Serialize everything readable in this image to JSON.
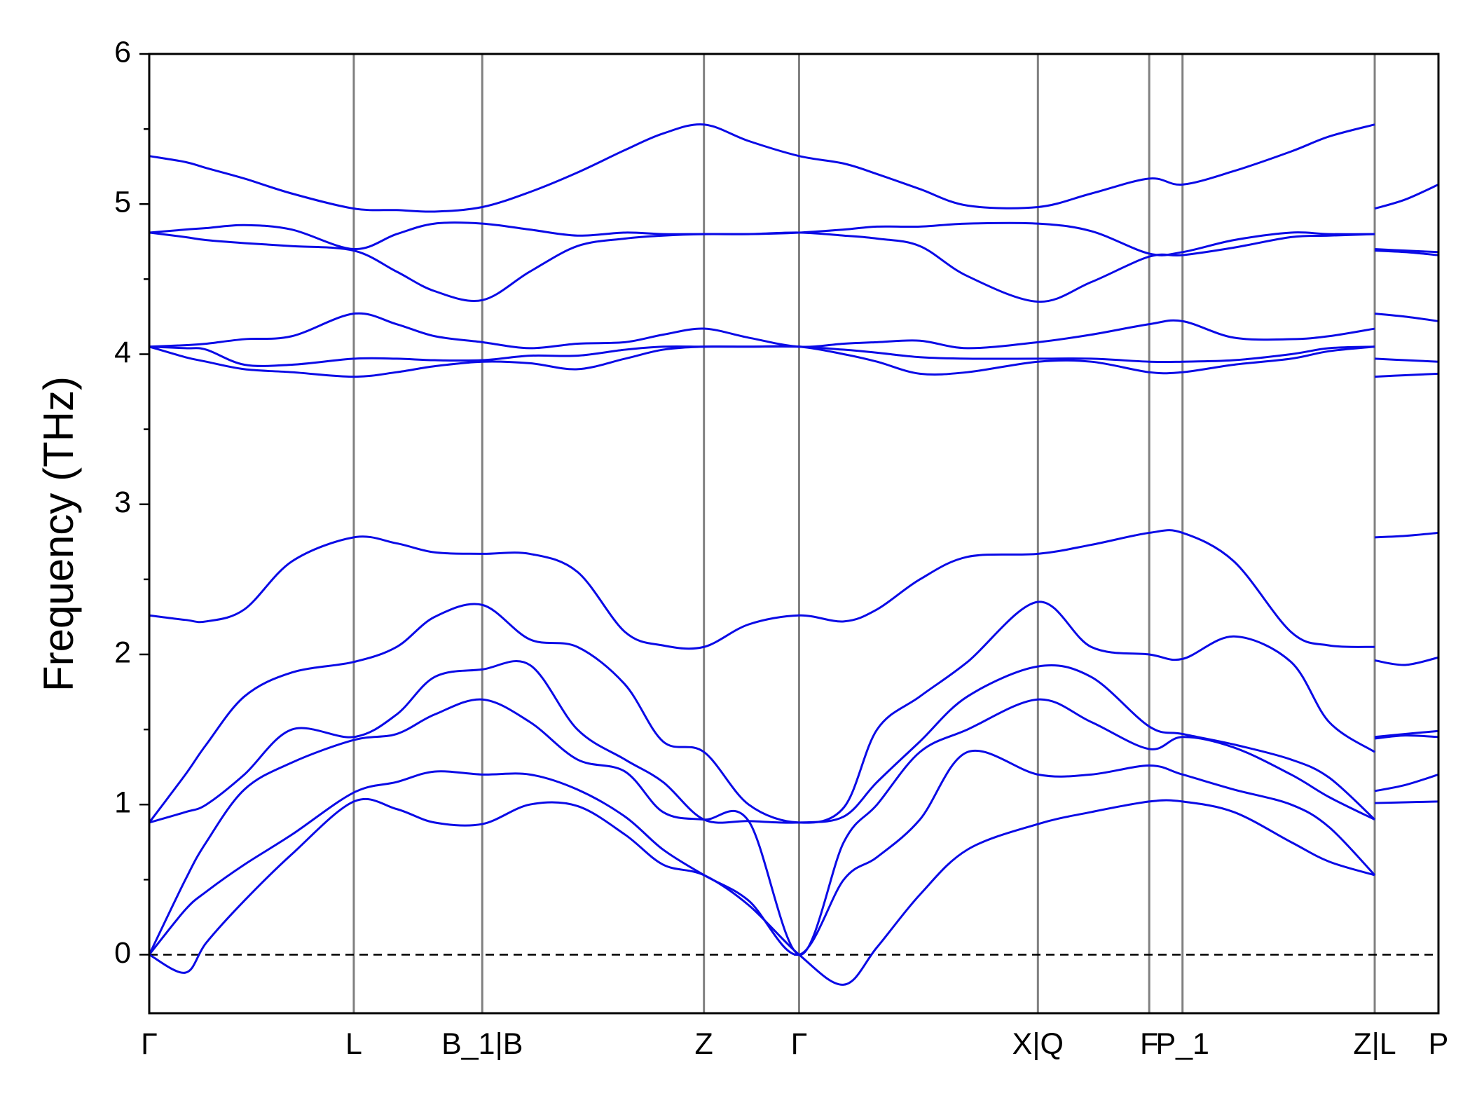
{
  "chart_data": {
    "type": "line",
    "ylabel": "Frequency (THz)",
    "x": [
      0,
      0.38,
      0.6,
      1.0,
      1.5,
      2.15,
      2.6,
      3.0,
      3.5,
      4.0,
      4.5,
      5.0,
      5.4,
      5.83,
      6.3,
      6.83,
      7.3,
      7.65,
      8.1,
      8.6,
      9.34,
      9.9,
      10.51,
      10.86,
      11.4,
      12.0,
      12.4,
      12.88,
      12.88,
      12.88,
      13.2,
      13.55
    ],
    "xlim": [
      0,
      13.55
    ],
    "xticks": [
      {
        "value": 0,
        "label": "Γ"
      },
      {
        "value": 2.15,
        "label": "L"
      },
      {
        "value": 3.5,
        "label": "B_1|B"
      },
      {
        "value": 5.83,
        "label": "Z"
      },
      {
        "value": 6.83,
        "label": "Γ"
      },
      {
        "value": 9.34,
        "label": "X|Q"
      },
      {
        "value": 10.51,
        "label": "F"
      },
      {
        "value": 10.86,
        "label": "P_1"
      },
      {
        "value": 12.88,
        "label": "Z|L"
      },
      {
        "value": 13.55,
        "label": "P"
      }
    ],
    "ylim": [
      -0.39,
      6
    ],
    "yticks": [
      0,
      1,
      2,
      3,
      4,
      5,
      6
    ],
    "yminorticks": [
      0.5,
      1.5,
      2.5,
      3.5,
      4.5,
      5.5
    ],
    "hline": 0,
    "color": "#0a0ae6",
    "vline_color": "#808080",
    "series": [
      {
        "values": [
          0,
          -0.12,
          0.08,
          0.36,
          0.67,
          1.02,
          0.97,
          0.88,
          0.87,
          1.0,
          0.99,
          0.8,
          0.6,
          0.53,
          0.33,
          0,
          -0.2,
          0.05,
          0.4,
          0.7,
          0.87,
          0.95,
          1.02,
          1.02,
          0.95,
          0.75,
          0.62,
          0.53,
          null,
          1.01,
          1.015,
          1.02
        ]
      },
      {
        "values": [
          0,
          0.3,
          0.42,
          0.6,
          0.8,
          1.08,
          1.15,
          1.22,
          1.2,
          1.2,
          1.1,
          0.92,
          0.7,
          0.53,
          0.36,
          0,
          0.5,
          0.65,
          0.9,
          1.35,
          1.2,
          1.2,
          1.26,
          1.2,
          1.1,
          1.0,
          0.85,
          0.53,
          null,
          1.09,
          1.13,
          1.2
        ]
      },
      {
        "values": [
          0,
          0.5,
          0.75,
          1.1,
          1.28,
          1.43,
          1.47,
          1.6,
          1.7,
          1.55,
          1.3,
          1.22,
          0.95,
          0.9,
          0.89,
          0,
          0.75,
          1.0,
          1.35,
          1.5,
          1.7,
          1.55,
          1.37,
          1.45,
          1.38,
          1.2,
          1.05,
          0.9,
          null,
          1.44,
          1.46,
          1.45
        ]
      },
      {
        "values": [
          0.88,
          0.95,
          1.0,
          1.2,
          1.5,
          1.45,
          1.6,
          1.85,
          1.9,
          1.93,
          1.5,
          1.3,
          1.15,
          0.9,
          0.89,
          0.88,
          0.92,
          1.15,
          1.42,
          1.72,
          1.92,
          1.85,
          1.52,
          1.47,
          1.4,
          1.3,
          1.18,
          0.9,
          null,
          1.45,
          1.47,
          1.49
        ]
      },
      {
        "values": [
          0.88,
          1.2,
          1.4,
          1.72,
          1.88,
          1.95,
          2.05,
          2.25,
          2.33,
          2.1,
          2.05,
          1.8,
          1.42,
          1.35,
          1.0,
          0.88,
          0.98,
          1.5,
          1.72,
          1.95,
          2.35,
          2.05,
          2.0,
          1.97,
          2.12,
          1.95,
          1.55,
          1.35,
          null,
          1.96,
          1.93,
          1.98
        ]
      },
      {
        "values": [
          2.26,
          2.23,
          2.22,
          2.3,
          2.62,
          2.78,
          2.74,
          2.68,
          2.67,
          2.67,
          2.55,
          2.15,
          2.06,
          2.05,
          2.2,
          2.26,
          2.22,
          2.3,
          2.5,
          2.65,
          2.67,
          2.73,
          2.81,
          2.81,
          2.62,
          2.15,
          2.06,
          2.05,
          null,
          2.78,
          2.79,
          2.81
        ]
      },
      {
        "values": [
          4.05,
          3.98,
          3.95,
          3.9,
          3.88,
          3.85,
          3.88,
          3.92,
          3.95,
          3.94,
          3.9,
          3.97,
          4.03,
          4.05,
          4.05,
          4.05,
          4.0,
          3.95,
          3.87,
          3.88,
          3.95,
          3.95,
          3.88,
          3.88,
          3.93,
          3.97,
          4.02,
          4.05,
          null,
          3.85,
          3.86,
          3.87
        ]
      },
      {
        "values": [
          4.05,
          4.04,
          4.03,
          3.93,
          3.93,
          3.97,
          3.97,
          3.96,
          3.96,
          3.99,
          3.99,
          4.03,
          4.05,
          4.05,
          4.05,
          4.05,
          4.03,
          4.01,
          3.98,
          3.97,
          3.97,
          3.97,
          3.95,
          3.95,
          3.96,
          4.0,
          4.04,
          4.05,
          null,
          3.97,
          3.96,
          3.95
        ]
      },
      {
        "values": [
          4.05,
          4.06,
          4.07,
          4.1,
          4.12,
          4.27,
          4.2,
          4.12,
          4.08,
          4.04,
          4.07,
          4.08,
          4.13,
          4.17,
          4.11,
          4.05,
          4.07,
          4.08,
          4.09,
          4.04,
          4.08,
          4.13,
          4.2,
          4.22,
          4.11,
          4.1,
          4.12,
          4.17,
          null,
          4.27,
          4.25,
          4.22
        ]
      },
      {
        "values": [
          4.81,
          4.78,
          4.76,
          4.74,
          4.72,
          4.69,
          4.55,
          4.42,
          4.36,
          4.55,
          4.72,
          4.77,
          4.79,
          4.8,
          4.8,
          4.81,
          4.79,
          4.77,
          4.72,
          4.52,
          4.35,
          4.48,
          4.65,
          4.66,
          4.71,
          4.78,
          4.79,
          4.8,
          null,
          4.69,
          4.68,
          4.66
        ]
      },
      {
        "values": [
          4.81,
          4.83,
          4.84,
          4.86,
          4.83,
          4.7,
          4.8,
          4.87,
          4.87,
          4.83,
          4.79,
          4.81,
          4.8,
          4.8,
          4.8,
          4.81,
          4.83,
          4.85,
          4.85,
          4.87,
          4.87,
          4.82,
          4.67,
          4.68,
          4.76,
          4.81,
          4.8,
          4.8,
          null,
          4.7,
          4.69,
          4.68
        ]
      },
      {
        "values": [
          5.32,
          5.28,
          5.24,
          5.17,
          5.07,
          4.97,
          4.96,
          4.95,
          4.98,
          5.08,
          5.21,
          5.36,
          5.47,
          5.53,
          5.42,
          5.32,
          5.27,
          5.2,
          5.1,
          4.99,
          4.98,
          5.07,
          5.17,
          5.13,
          5.22,
          5.35,
          5.45,
          5.53,
          null,
          4.97,
          5.03,
          5.13
        ]
      }
    ]
  }
}
